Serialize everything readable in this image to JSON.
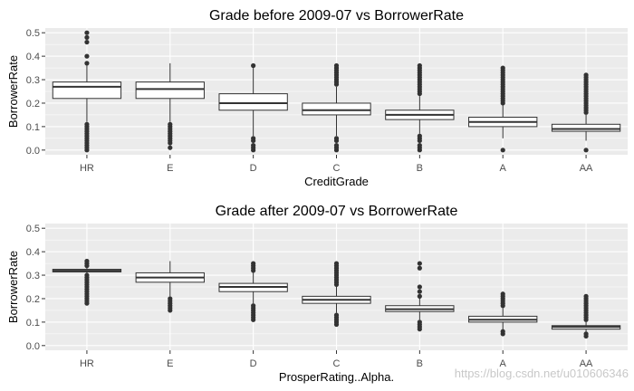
{
  "chart_data": [
    {
      "type": "box",
      "title": "Grade before 2009-07 vs BorrowerRate",
      "xlabel": "CreditGrade",
      "ylabel": "BorrowerRate",
      "ylim": [
        -0.02,
        0.52
      ],
      "yticks": [
        "0.0",
        "0.1",
        "0.2",
        "0.3",
        "0.4",
        "0.5"
      ],
      "grid": true,
      "categories": [
        "HR",
        "E",
        "D",
        "C",
        "B",
        "A",
        "AA"
      ],
      "boxes": [
        {
          "q1": 0.22,
          "median": 0.27,
          "q3": 0.29,
          "whisker_low": 0.12,
          "whisker_high": 0.36,
          "outliers": [
            0.0,
            0.01,
            0.02,
            0.03,
            0.04,
            0.05,
            0.06,
            0.07,
            0.08,
            0.09,
            0.1,
            0.11,
            0.37,
            0.4,
            0.46,
            0.48,
            0.5
          ]
        },
        {
          "q1": 0.22,
          "median": 0.26,
          "q3": 0.29,
          "whisker_low": 0.12,
          "whisker_high": 0.37,
          "outliers": [
            0.01,
            0.03,
            0.04,
            0.05,
            0.06,
            0.07,
            0.08,
            0.09,
            0.1,
            0.11
          ]
        },
        {
          "q1": 0.17,
          "median": 0.2,
          "q3": 0.24,
          "whisker_low": 0.06,
          "whisker_high": 0.35,
          "outliers": [
            0.0,
            0.01,
            0.02,
            0.04,
            0.05,
            0.36
          ]
        },
        {
          "q1": 0.15,
          "median": 0.17,
          "q3": 0.2,
          "whisker_low": 0.06,
          "whisker_high": 0.27,
          "outliers": [
            0.0,
            0.01,
            0.02,
            0.04,
            0.05,
            0.28,
            0.29,
            0.3,
            0.31,
            0.32,
            0.33,
            0.34,
            0.35,
            0.36
          ]
        },
        {
          "q1": 0.13,
          "median": 0.15,
          "q3": 0.17,
          "whisker_low": 0.07,
          "whisker_high": 0.23,
          "outliers": [
            0.0,
            0.01,
            0.02,
            0.04,
            0.05,
            0.06,
            0.24,
            0.25,
            0.26,
            0.27,
            0.28,
            0.29,
            0.3,
            0.31,
            0.32,
            0.33,
            0.34,
            0.35,
            0.36
          ]
        },
        {
          "q1": 0.1,
          "median": 0.12,
          "q3": 0.14,
          "whisker_low": 0.05,
          "whisker_high": 0.19,
          "outliers": [
            0.0,
            0.2,
            0.21,
            0.22,
            0.23,
            0.24,
            0.25,
            0.26,
            0.27,
            0.28,
            0.29,
            0.3,
            0.31,
            0.32,
            0.33,
            0.34,
            0.35
          ]
        },
        {
          "q1": 0.08,
          "median": 0.09,
          "q3": 0.11,
          "whisker_low": 0.04,
          "whisker_high": 0.15,
          "outliers": [
            0.0,
            0.16,
            0.17,
            0.18,
            0.19,
            0.2,
            0.21,
            0.22,
            0.23,
            0.24,
            0.25,
            0.26,
            0.27,
            0.28,
            0.29,
            0.3,
            0.31,
            0.32
          ]
        }
      ]
    },
    {
      "type": "box",
      "title": "Grade after 2009-07 vs BorrowerRate",
      "xlabel": "ProsperRating..Alpha.",
      "ylabel": "BorrowerRate",
      "ylim": [
        -0.02,
        0.52
      ],
      "yticks": [
        "0.0",
        "0.1",
        "0.2",
        "0.3",
        "0.4",
        "0.5"
      ],
      "grid": true,
      "categories": [
        "HR",
        "E",
        "D",
        "C",
        "B",
        "A",
        "AA"
      ],
      "boxes": [
        {
          "q1": 0.314,
          "median": 0.319,
          "q3": 0.325,
          "whisker_low": 0.305,
          "whisker_high": 0.335,
          "outliers": [
            0.18,
            0.19,
            0.2,
            0.21,
            0.22,
            0.23,
            0.24,
            0.25,
            0.26,
            0.27,
            0.28,
            0.29,
            0.3,
            0.34,
            0.35,
            0.36
          ]
        },
        {
          "q1": 0.27,
          "median": 0.29,
          "q3": 0.31,
          "whisker_low": 0.21,
          "whisker_high": 0.36,
          "outliers": [
            0.15,
            0.16,
            0.17,
            0.18,
            0.19,
            0.2
          ]
        },
        {
          "q1": 0.23,
          "median": 0.25,
          "q3": 0.265,
          "whisker_low": 0.18,
          "whisker_high": 0.31,
          "outliers": [
            0.11,
            0.12,
            0.13,
            0.14,
            0.15,
            0.16,
            0.17,
            0.32,
            0.33,
            0.34,
            0.35
          ]
        },
        {
          "q1": 0.18,
          "median": 0.195,
          "q3": 0.21,
          "whisker_low": 0.14,
          "whisker_high": 0.25,
          "outliers": [
            0.09,
            0.1,
            0.11,
            0.12,
            0.13,
            0.26,
            0.27,
            0.28,
            0.29,
            0.3,
            0.31,
            0.32,
            0.33,
            0.34,
            0.35
          ]
        },
        {
          "q1": 0.145,
          "median": 0.155,
          "q3": 0.17,
          "whisker_low": 0.11,
          "whisker_high": 0.2,
          "outliers": [
            0.07,
            0.08,
            0.09,
            0.1,
            0.21,
            0.23,
            0.25,
            0.33,
            0.35
          ]
        },
        {
          "q1": 0.1,
          "median": 0.11,
          "q3": 0.125,
          "whisker_low": 0.065,
          "whisker_high": 0.16,
          "outliers": [
            0.05,
            0.06,
            0.17,
            0.18,
            0.19,
            0.2,
            0.21,
            0.22
          ]
        },
        {
          "q1": 0.07,
          "median": 0.08,
          "q3": 0.085,
          "whisker_low": 0.055,
          "whisker_high": 0.1,
          "outliers": [
            0.04,
            0.05,
            0.11,
            0.12,
            0.13,
            0.14,
            0.15,
            0.16,
            0.17,
            0.18,
            0.19,
            0.2,
            0.21
          ]
        }
      ]
    }
  ],
  "watermark": "https://blog.csdn.net/u010606346",
  "colors": {
    "panel": "#ebebeb",
    "grid": "#ffffff",
    "ink": "#333333",
    "tick_text": "#4d4d4d"
  }
}
